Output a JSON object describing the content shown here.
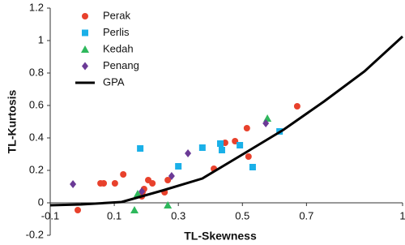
{
  "chart_data": {
    "type": "scatter",
    "xlabel": "TL-Skewness",
    "ylabel": "TL-Kurtosis",
    "xlim": [
      -0.1,
      1.0
    ],
    "ylim": [
      -0.2,
      1.2
    ],
    "xticks": [
      -0.1,
      0.1,
      0.3,
      0.5,
      0.7,
      1.0
    ],
    "yticks": [
      -0.2,
      0,
      0.2,
      0.4,
      0.6,
      0.8,
      1,
      1.2
    ],
    "grid": false,
    "legend": "upper left",
    "series": [
      {
        "name": "Perak",
        "color": "#e8412c",
        "marker": "circle",
        "x": [
          -0.014,
          0.057,
          0.067,
          0.102,
          0.128,
          0.186,
          0.188,
          0.193,
          0.206,
          0.219,
          0.257,
          0.267,
          0.411,
          0.446,
          0.477,
          0.514,
          0.519,
          0.671
        ],
        "values": [
          -0.045,
          0.12,
          0.12,
          0.12,
          0.175,
          0.04,
          0.065,
          0.085,
          0.14,
          0.12,
          0.065,
          0.14,
          0.21,
          0.37,
          0.38,
          0.46,
          0.285,
          0.595
        ]
      },
      {
        "name": "Perlis",
        "color": "#1ab0e8",
        "marker": "square",
        "x": [
          0.181,
          0.3,
          0.375,
          0.431,
          0.436,
          0.492,
          0.532,
          0.616
        ],
        "values": [
          0.335,
          0.225,
          0.34,
          0.365,
          0.325,
          0.355,
          0.22,
          0.44
        ]
      },
      {
        "name": "Kedah",
        "color": "#2eb85c",
        "marker": "triangle",
        "x": [
          0.163,
          0.173,
          0.267,
          0.578
        ],
        "values": [
          -0.045,
          0.055,
          -0.015,
          0.52
        ]
      },
      {
        "name": "Penang",
        "color": "#6b3a96",
        "marker": "diamond",
        "x": [
          -0.029,
          0.186,
          0.279,
          0.33,
          0.573
        ],
        "values": [
          0.115,
          0.07,
          0.165,
          0.305,
          0.49
        ]
      },
      {
        "name": "GPA",
        "color": "#000000",
        "marker": "line",
        "x": [
          -0.1,
          -0.004,
          0.123,
          0.249,
          0.375,
          0.502,
          0.628,
          0.755,
          0.881,
          1.0
        ],
        "values": [
          -0.015,
          -0.01,
          0.005,
          0.075,
          0.15,
          0.3,
          0.45,
          0.625,
          0.81,
          1.025
        ]
      }
    ]
  }
}
